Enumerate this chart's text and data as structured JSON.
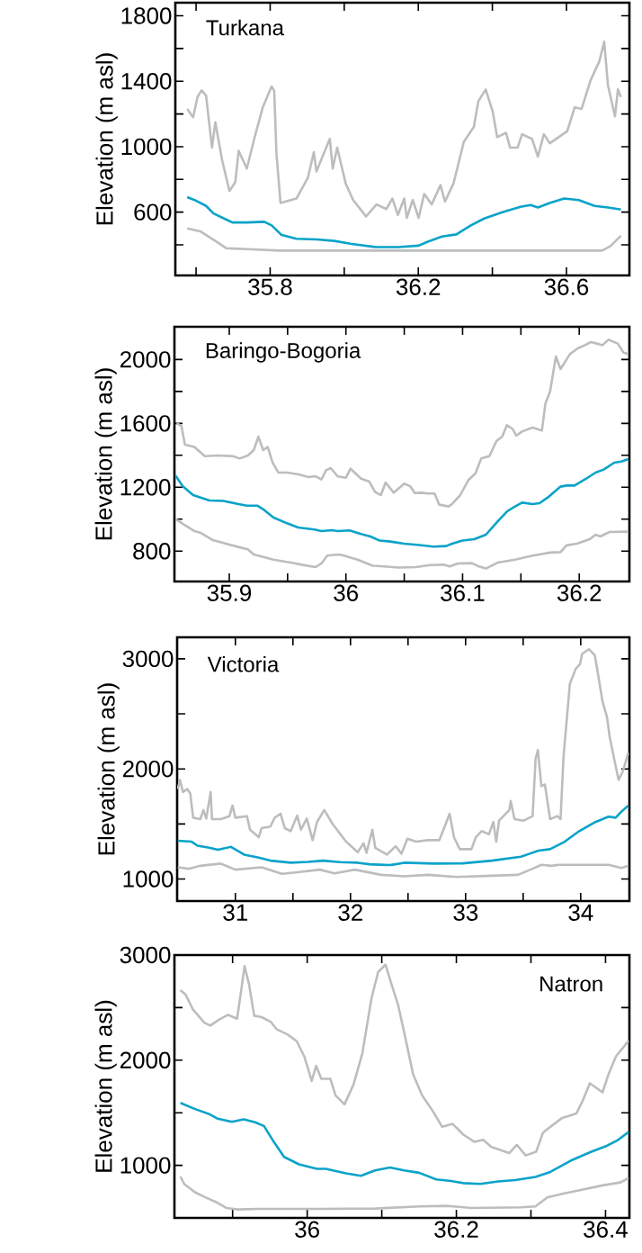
{
  "chart_data": [
    {
      "type": "line",
      "title": "Turkana",
      "ylabel": "Elevation (m asl)",
      "xlim": [
        35.544,
        36.77
      ],
      "ylim": [
        213,
        1880
      ],
      "xticks": [
        {
          "value": 35.6,
          "label": null
        },
        35.8,
        {
          "value": 36.0,
          "label": null
        },
        36.2,
        {
          "value": 36.4,
          "label": null
        },
        36.6
      ],
      "yticks": [
        {
          "value": 400,
          "label": null
        },
        600,
        {
          "value": 800,
          "label": null
        },
        1000,
        {
          "value": 1200,
          "label": null
        },
        1400,
        {
          "value": 1600,
          "label": null
        },
        1800
      ],
      "series": [
        {
          "color": "#bcbdbf",
          "x": [
            35.576,
            35.592,
            35.604,
            35.615,
            35.627,
            35.643,
            35.652,
            35.67,
            35.69,
            35.706,
            35.715,
            35.737,
            35.757,
            35.78,
            35.804,
            35.811,
            35.817,
            35.828,
            35.871,
            35.902,
            35.918,
            35.925,
            35.961,
            35.969,
            35.981,
            36.004,
            36.024,
            36.059,
            36.087,
            36.114,
            36.13,
            36.145,
            36.162,
            36.169,
            36.185,
            36.201,
            36.216,
            36.236,
            36.26,
            36.272,
            36.295,
            36.315,
            36.323,
            36.35,
            36.362,
            36.382,
            36.401,
            36.413,
            36.437,
            36.448,
            36.468,
            36.48,
            36.507,
            36.523,
            36.539,
            36.555,
            36.602,
            36.622,
            36.641,
            36.665,
            36.689,
            36.702,
            36.712,
            36.731,
            36.739,
            36.747
          ],
          "values": [
            1231,
            1180,
            1304,
            1344,
            1313,
            994,
            1149,
            921,
            729,
            784,
            975,
            866,
            1048,
            1240,
            1368,
            1341,
            957,
            656,
            683,
            811,
            966,
            848,
            1048,
            866,
            994,
            775,
            674,
            574,
            647,
            619,
            683,
            583,
            683,
            565,
            674,
            565,
            711,
            647,
            765,
            665,
            775,
            957,
            1030,
            1121,
            1277,
            1350,
            1213,
            1058,
            1085,
            994,
            994,
            1076,
            1048,
            939,
            1076,
            1021,
            1094,
            1240,
            1231,
            1405,
            1523,
            1642,
            1377,
            1185,
            1350,
            1304
          ]
        },
        {
          "color": "#0aa3c9",
          "x": [
            35.576,
            35.596,
            35.627,
            35.647,
            35.698,
            35.737,
            35.784,
            35.804,
            35.831,
            35.871,
            35.926,
            35.973,
            36.02,
            36.083,
            36.146,
            36.201,
            36.224,
            36.264,
            36.303,
            36.342,
            36.378,
            36.429,
            36.476,
            36.503,
            36.523,
            36.555,
            36.594,
            36.633,
            36.676,
            36.712,
            36.747
          ],
          "values": [
            692,
            674,
            638,
            592,
            537,
            537,
            541,
            519,
            460,
            437,
            433,
            424,
            406,
            387,
            386,
            395,
            418,
            451,
            464,
            519,
            561,
            601,
            632,
            643,
            628,
            656,
            683,
            674,
            638,
            628,
            616
          ]
        },
        {
          "color": "#bcbdbf",
          "x": [
            35.576,
            35.611,
            35.651,
            35.682,
            35.737,
            35.824,
            35.926,
            36.161,
            36.319,
            36.476,
            36.696,
            36.719,
            36.747
          ],
          "values": [
            501,
            483,
            425,
            379,
            374,
            365,
            365,
            365,
            365,
            365,
            365,
            392,
            456
          ]
        }
      ]
    },
    {
      "type": "line",
      "title": "Baringo-Bogoria",
      "ylabel": "Elevation (m asl)",
      "xlim": [
        35.853,
        36.243
      ],
      "ylim": [
        610,
        2205
      ],
      "xticks": [
        35.9,
        {
          "value": 35.95,
          "label": null
        },
        36,
        {
          "value": 36.05,
          "label": null
        },
        36.1,
        {
          "value": 36.15,
          "label": null
        },
        36.2
      ],
      "yticks": [
        800,
        {
          "value": 1000,
          "label": null
        },
        1200,
        {
          "value": 1400,
          "label": null
        },
        1600,
        {
          "value": 1800,
          "label": null
        },
        2000
      ],
      "series": [
        {
          "color": "#bcbdbf",
          "x": [
            35.855,
            35.859,
            35.862,
            35.87,
            35.879,
            35.89,
            35.903,
            35.909,
            35.916,
            35.921,
            35.925,
            35.929,
            35.933,
            35.937,
            35.942,
            35.95,
            35.96,
            35.968,
            35.974,
            35.979,
            35.983,
            35.987,
            35.993,
            36.0,
            36.004,
            36.013,
            36.02,
            36.025,
            36.03,
            36.034,
            36.041,
            36.05,
            36.055,
            36.059,
            36.065,
            36.07,
            36.076,
            36.08,
            36.088,
            36.091,
            36.098,
            36.105,
            36.111,
            36.116,
            36.123,
            36.129,
            36.134,
            36.138,
            36.143,
            36.146,
            36.151,
            36.16,
            36.168,
            36.171,
            36.175,
            36.18,
            36.184,
            36.192,
            36.199,
            36.205,
            36.21,
            36.215,
            36.22,
            36.225,
            36.233,
            36.238,
            36.242
          ],
          "values": [
            1602,
            1583,
            1467,
            1452,
            1395,
            1399,
            1395,
            1380,
            1399,
            1433,
            1517,
            1433,
            1452,
            1358,
            1292,
            1292,
            1279,
            1264,
            1269,
            1249,
            1307,
            1320,
            1268,
            1260,
            1316,
            1254,
            1236,
            1170,
            1151,
            1230,
            1166,
            1223,
            1207,
            1164,
            1166,
            1161,
            1161,
            1091,
            1080,
            1095,
            1151,
            1245,
            1286,
            1380,
            1395,
            1489,
            1517,
            1589,
            1564,
            1523,
            1549,
            1574,
            1555,
            1724,
            1799,
            2019,
            1940,
            2034,
            2071,
            2090,
            2109,
            2100,
            2090,
            2124,
            2100,
            2043,
            2034
          ]
        },
        {
          "color": "#0aa3c9",
          "x": [
            35.854,
            35.86,
            35.869,
            35.883,
            35.895,
            35.908,
            35.915,
            35.924,
            35.93,
            35.938,
            35.95,
            35.959,
            35.973,
            35.979,
            35.988,
            35.993,
            36.003,
            36.013,
            36.021,
            36.029,
            36.038,
            36.05,
            36.063,
            36.075,
            36.086,
            36.091,
            36.1,
            36.11,
            36.12,
            36.13,
            36.138,
            36.144,
            36.151,
            36.16,
            36.166,
            36.173,
            36.184,
            36.189,
            36.196,
            36.206,
            36.214,
            36.221,
            36.23,
            36.236,
            36.242
          ],
          "values": [
            1273,
            1207,
            1151,
            1117,
            1114,
            1095,
            1085,
            1085,
            1057,
            1010,
            973,
            948,
            935,
            926,
            931,
            926,
            930,
            907,
            892,
            866,
            860,
            847,
            838,
            828,
            832,
            847,
            866,
            875,
            903,
            986,
            1048,
            1076,
            1104,
            1095,
            1100,
            1136,
            1204,
            1211,
            1211,
            1254,
            1292,
            1311,
            1354,
            1361,
            1376
          ]
        },
        {
          "color": "#bcbdbf",
          "x": [
            35.854,
            35.861,
            35.87,
            35.875,
            35.886,
            35.9,
            35.91,
            35.916,
            35.921,
            35.938,
            35.955,
            35.962,
            35.974,
            35.979,
            35.984,
            35.993,
            35.997,
            36.01,
            36.023,
            36.03,
            36.045,
            36.06,
            36.072,
            36.084,
            36.089,
            36.096,
            36.108,
            36.114,
            36.12,
            36.13,
            36.145,
            36.16,
            36.175,
            36.184,
            36.189,
            36.198,
            36.209,
            36.214,
            36.218,
            36.226,
            36.242
          ],
          "values": [
            1001,
            967,
            926,
            916,
            869,
            841,
            822,
            811,
            779,
            747,
            725,
            715,
            700,
            723,
            772,
            779,
            775,
            747,
            709,
            706,
            697,
            700,
            713,
            715,
            704,
            723,
            725,
            704,
            691,
            728,
            747,
            772,
            791,
            794,
            836,
            847,
            875,
            903,
            892,
            920,
            922
          ]
        }
      ]
    },
    {
      "type": "line",
      "title": "Victoria",
      "ylabel": "Elevation (m asl)",
      "xlim": [
        30.494,
        34.423
      ],
      "ylim": [
        800,
        3195
      ],
      "xticks": [
        31,
        {
          "value": 31.5,
          "label": null
        },
        32,
        {
          "value": 32.5,
          "label": null
        },
        33,
        {
          "value": 33.5,
          "label": null
        },
        34
      ],
      "yticks": [
        1000,
        {
          "value": 1500,
          "label": null
        },
        2000,
        {
          "value": 2500,
          "label": null
        },
        3000
      ],
      "series": [
        {
          "color": "#bcbdbf",
          "x": [
            30.499,
            30.519,
            30.544,
            30.582,
            30.608,
            30.633,
            30.696,
            30.722,
            30.747,
            30.785,
            30.797,
            30.873,
            30.949,
            30.975,
            31.0,
            31.101,
            31.127,
            31.203,
            31.228,
            31.304,
            31.342,
            31.392,
            31.43,
            31.481,
            31.537,
            31.57,
            31.62,
            31.671,
            31.709,
            31.772,
            31.848,
            31.962,
            32.063,
            32.114,
            32.139,
            32.19,
            32.215,
            32.316,
            32.392,
            32.443,
            32.494,
            32.57,
            32.671,
            32.772,
            32.823,
            32.861,
            32.899,
            32.949,
            33.051,
            33.089,
            33.139,
            33.203,
            33.241,
            33.266,
            33.291,
            33.38,
            33.392,
            33.425,
            33.506,
            33.582,
            33.608,
            33.628,
            33.658,
            33.689,
            33.734,
            33.797,
            33.825,
            33.851,
            33.906,
            33.957,
            33.994,
            34.013,
            34.071,
            34.122,
            34.147,
            34.19,
            34.228,
            34.253,
            34.291,
            34.329,
            34.367,
            34.413
          ],
          "values": [
            1817,
            1899,
            1790,
            1817,
            1776,
            1557,
            1544,
            1626,
            1549,
            1790,
            1544,
            1544,
            1571,
            1667,
            1557,
            1571,
            1448,
            1380,
            1462,
            1476,
            1557,
            1593,
            1462,
            1435,
            1576,
            1448,
            1549,
            1353,
            1517,
            1626,
            1495,
            1339,
            1243,
            1325,
            1238,
            1448,
            1284,
            1221,
            1298,
            1230,
            1366,
            1339,
            1353,
            1353,
            1489,
            1593,
            1380,
            1271,
            1271,
            1380,
            1435,
            1407,
            1517,
            1339,
            1530,
            1626,
            1708,
            1544,
            1530,
            1571,
            2090,
            2172,
            1844,
            1858,
            1544,
            1571,
            1544,
            2118,
            2773,
            2910,
            2951,
            3046,
            3087,
            3033,
            2883,
            2609,
            2473,
            2281,
            2090,
            1899,
            1981,
            2145
          ]
        },
        {
          "color": "#0aa3c9",
          "x": [
            30.499,
            30.62,
            30.671,
            30.772,
            30.848,
            30.962,
            31.076,
            31.203,
            31.304,
            31.481,
            31.633,
            31.759,
            31.911,
            32.063,
            32.165,
            32.342,
            32.468,
            32.722,
            32.975,
            33.228,
            33.481,
            33.557,
            33.633,
            33.734,
            33.861,
            33.987,
            34.114,
            34.241,
            34.304,
            34.354,
            34.413
          ],
          "values": [
            1347,
            1339,
            1303,
            1284,
            1265,
            1292,
            1221,
            1194,
            1167,
            1148,
            1156,
            1167,
            1153,
            1148,
            1134,
            1126,
            1148,
            1140,
            1142,
            1167,
            1202,
            1230,
            1257,
            1271,
            1339,
            1435,
            1511,
            1566,
            1557,
            1612,
            1667
          ]
        },
        {
          "color": "#bcbdbf",
          "x": [
            30.499,
            30.595,
            30.696,
            30.873,
            31.0,
            31.228,
            31.405,
            31.506,
            31.734,
            31.861,
            32.038,
            32.266,
            32.468,
            32.671,
            32.924,
            33.228,
            33.456,
            33.582,
            33.658,
            33.747,
            33.81,
            33.987,
            34.241,
            34.354,
            34.413
          ],
          "values": [
            1107,
            1093,
            1120,
            1140,
            1085,
            1107,
            1047,
            1058,
            1085,
            1052,
            1085,
            1038,
            1025,
            1038,
            1019,
            1030,
            1038,
            1093,
            1129,
            1120,
            1129,
            1129,
            1129,
            1101,
            1120
          ]
        }
      ]
    },
    {
      "type": "line",
      "title": "Natron",
      "ylabel": "Elevation (m asl)",
      "xlim": [
        35.822,
        36.432
      ],
      "ylim": [
        500,
        3000
      ],
      "xticks": [
        {
          "value": 35.9,
          "label": null
        },
        36,
        {
          "value": 36.1,
          "label": null
        },
        36.2,
        {
          "value": 36.3,
          "label": null
        },
        36.4
      ],
      "yticks": [
        1000,
        {
          "value": 1500,
          "label": null
        },
        2000,
        {
          "value": 2500,
          "label": null
        },
        3000
      ],
      "series": [
        {
          "color": "#bcbdbf",
          "x": [
            35.83,
            35.837,
            35.847,
            35.854,
            35.862,
            35.87,
            35.882,
            35.894,
            35.906,
            35.911,
            35.916,
            35.922,
            35.929,
            35.939,
            35.951,
            35.959,
            35.974,
            35.986,
            35.996,
            36.001,
            36.006,
            36.012,
            36.019,
            36.031,
            36.038,
            36.05,
            36.062,
            36.074,
            36.086,
            36.095,
            36.105,
            36.113,
            36.122,
            36.13,
            36.142,
            36.154,
            36.169,
            36.181,
            36.195,
            36.209,
            36.224,
            36.236,
            36.247,
            36.257,
            36.271,
            36.281,
            36.293,
            36.307,
            36.316,
            36.326,
            36.342,
            36.361,
            36.369,
            36.379,
            36.396,
            36.404,
            36.414,
            36.424,
            36.431
          ],
          "values": [
            2666,
            2623,
            2480,
            2423,
            2357,
            2329,
            2386,
            2431,
            2394,
            2637,
            2894,
            2723,
            2423,
            2409,
            2366,
            2294,
            2243,
            2180,
            2037,
            1923,
            1803,
            1946,
            1823,
            1823,
            1666,
            1580,
            1766,
            2066,
            2580,
            2837,
            2909,
            2723,
            2523,
            2266,
            1866,
            1666,
            1509,
            1366,
            1394,
            1294,
            1223,
            1243,
            1174,
            1151,
            1117,
            1194,
            1094,
            1129,
            1309,
            1366,
            1451,
            1494,
            1609,
            1780,
            1694,
            1866,
            2037,
            2123,
            2186
          ]
        },
        {
          "color": "#0aa3c9",
          "x": [
            35.83,
            35.849,
            35.868,
            35.88,
            35.899,
            35.915,
            35.93,
            35.942,
            35.954,
            35.969,
            35.989,
            36.013,
            36.025,
            36.052,
            36.072,
            36.091,
            36.111,
            36.13,
            36.15,
            36.173,
            36.193,
            36.209,
            36.232,
            36.256,
            36.279,
            36.306,
            36.326,
            36.353,
            36.381,
            36.4,
            36.416,
            36.431
          ],
          "values": [
            1594,
            1537,
            1489,
            1443,
            1414,
            1437,
            1409,
            1374,
            1237,
            1080,
            1009,
            966,
            966,
            923,
            900,
            951,
            980,
            951,
            929,
            866,
            851,
            831,
            823,
            846,
            860,
            889,
            937,
            1043,
            1129,
            1180,
            1237,
            1317
          ]
        },
        {
          "color": "#bcbdbf",
          "x": [
            35.83,
            35.835,
            35.849,
            35.864,
            35.88,
            35.892,
            35.907,
            35.935,
            36.013,
            36.091,
            36.15,
            36.189,
            36.22,
            36.287,
            36.306,
            36.322,
            36.342,
            36.361,
            36.396,
            36.42,
            36.431
          ],
          "values": [
            894,
            823,
            746,
            694,
            643,
            594,
            580,
            586,
            586,
            589,
            609,
            614,
            594,
            600,
            609,
            694,
            729,
            757,
            809,
            837,
            880
          ]
        }
      ]
    }
  ]
}
